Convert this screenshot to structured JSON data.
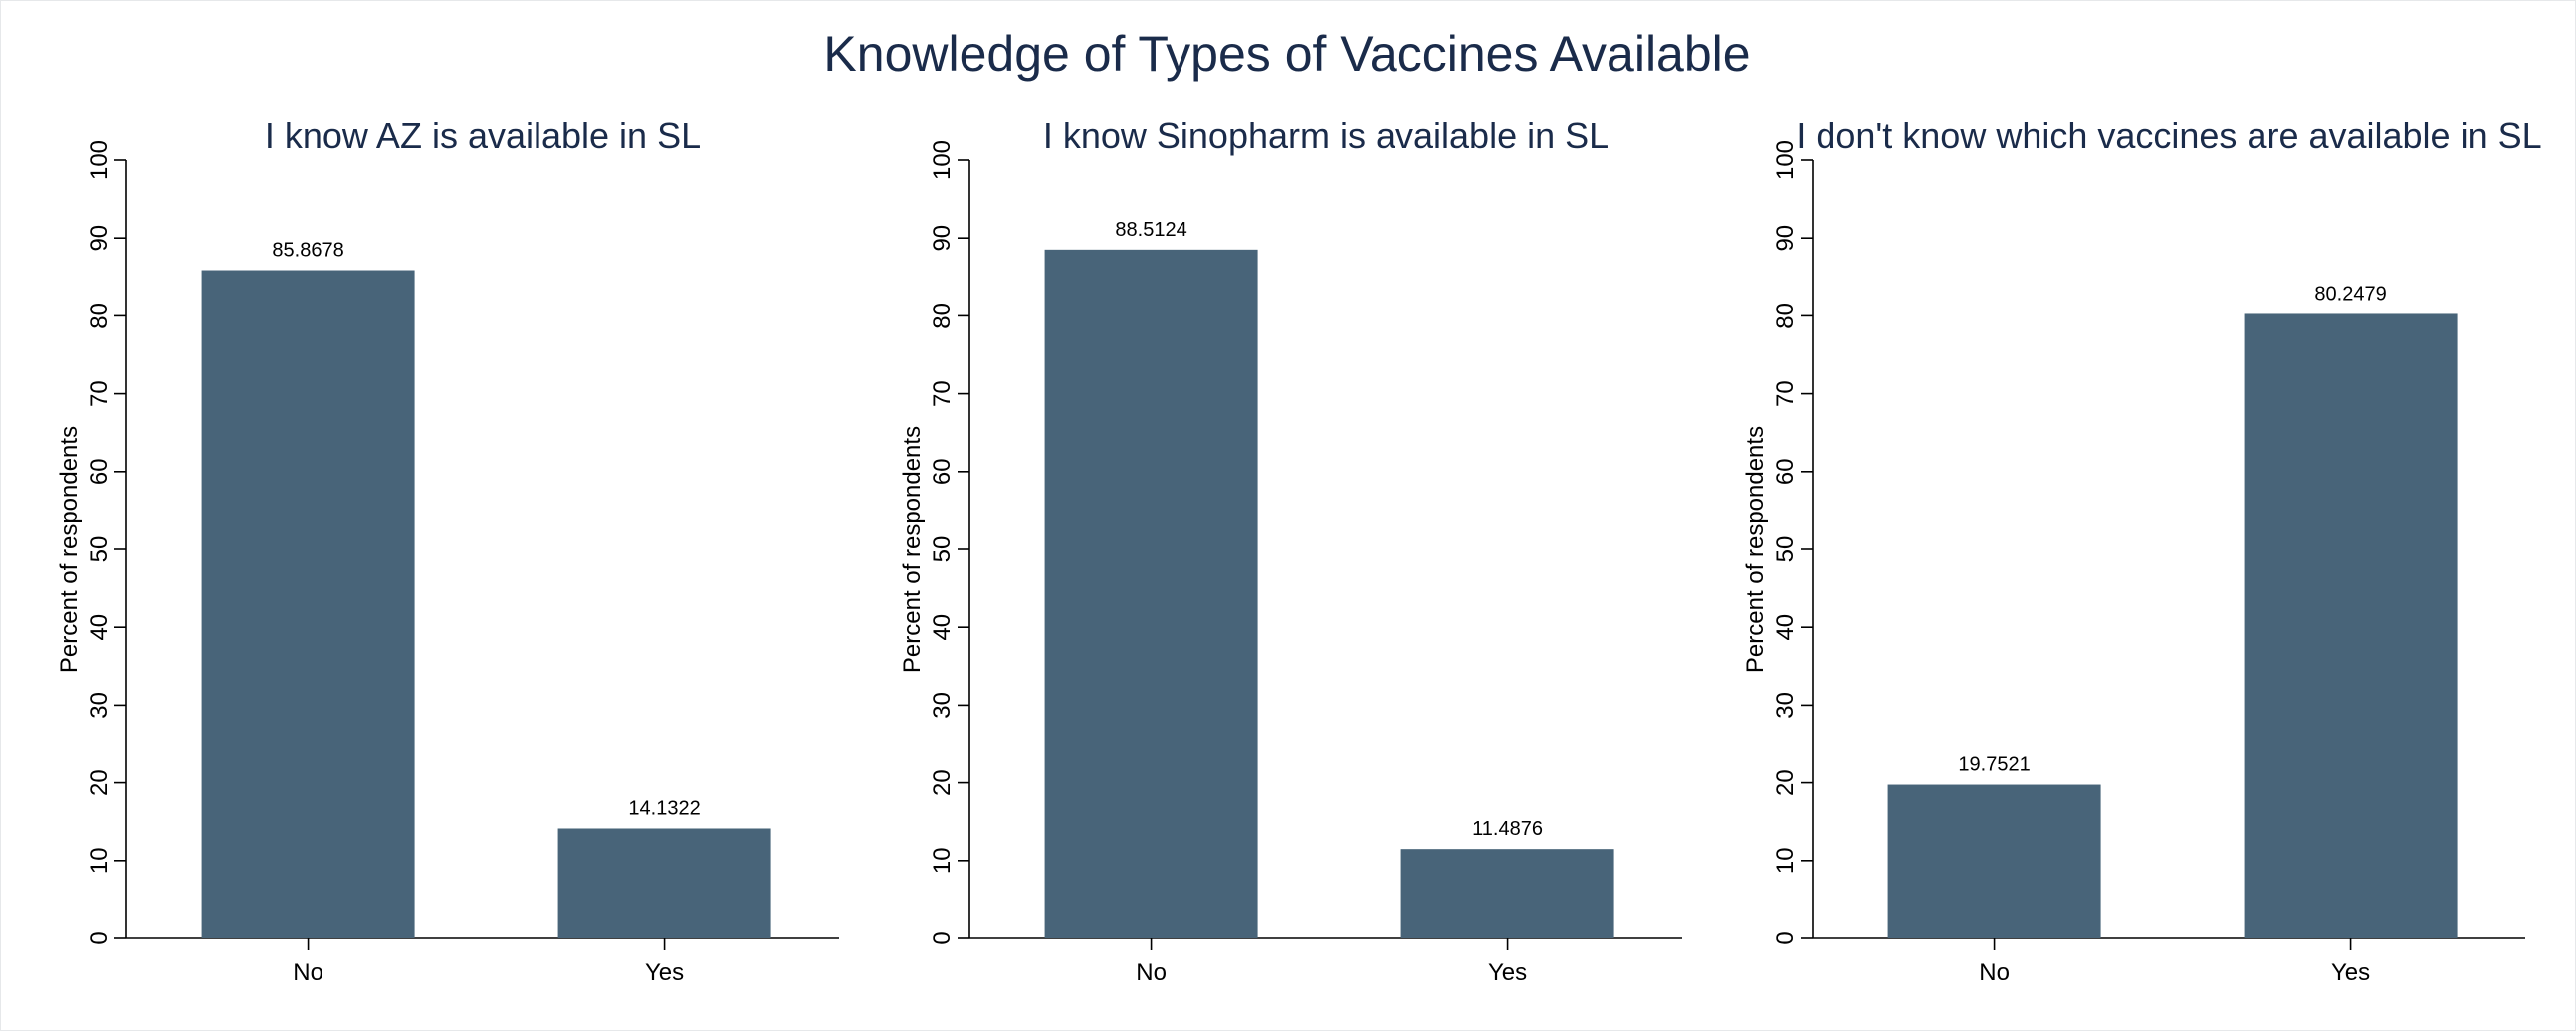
{
  "title": "Knowledge of Types of Vaccines Available",
  "colors": {
    "bar": "#486479",
    "title": "#1a2b4a"
  },
  "chart_data": [
    {
      "type": "bar",
      "title": "I know AZ is available in SL",
      "ylabel": "Percent of respondents",
      "xlabel": "",
      "categories": [
        "No",
        "Yes"
      ],
      "values": [
        85.8678,
        14.1322
      ],
      "data_labels": [
        "85.8678",
        "14.1322"
      ],
      "ylim": [
        0,
        100
      ],
      "yticks": [
        0,
        10,
        20,
        30,
        40,
        50,
        60,
        70,
        80,
        90,
        100
      ],
      "grid": false,
      "legend": "none"
    },
    {
      "type": "bar",
      "title": "I know Sinopharm is available in SL",
      "ylabel": "Percent of respondents",
      "xlabel": "",
      "categories": [
        "No",
        "Yes"
      ],
      "values": [
        88.5124,
        11.4876
      ],
      "data_labels": [
        "88.5124",
        "11.4876"
      ],
      "ylim": [
        0,
        100
      ],
      "yticks": [
        0,
        10,
        20,
        30,
        40,
        50,
        60,
        70,
        80,
        90,
        100
      ],
      "grid": false,
      "legend": "none"
    },
    {
      "type": "bar",
      "title": "I don't know which vaccines are available in SL",
      "ylabel": "Percent of respondents",
      "xlabel": "",
      "categories": [
        "No",
        "Yes"
      ],
      "values": [
        19.7521,
        80.2479
      ],
      "data_labels": [
        "19.7521",
        "80.2479"
      ],
      "ylim": [
        0,
        100
      ],
      "yticks": [
        0,
        10,
        20,
        30,
        40,
        50,
        60,
        70,
        80,
        90,
        100
      ],
      "grid": false,
      "legend": "none"
    }
  ]
}
